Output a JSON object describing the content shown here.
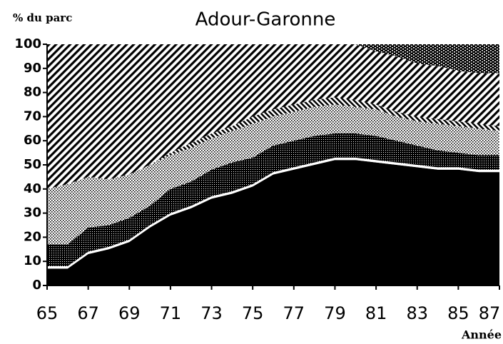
{
  "chart_data": {
    "type": "stacked-area",
    "title": "Adour-Garonne",
    "y_label": "% du parc",
    "x_label": "Année",
    "x": [
      65,
      66,
      67,
      68,
      69,
      70,
      71,
      72,
      73,
      74,
      75,
      76,
      77,
      78,
      79,
      80,
      81,
      82,
      83,
      84,
      85,
      86,
      87
    ],
    "xlim": [
      65,
      87
    ],
    "xticks": [
      65,
      67,
      69,
      71,
      73,
      75,
      77,
      79,
      81,
      83,
      85,
      87
    ],
    "ylim": [
      0,
      100
    ],
    "yticks": [
      0,
      10,
      20,
      30,
      40,
      50,
      60,
      70,
      80,
      90,
      100
    ],
    "series": [
      {
        "color": "#000000",
        "pattern": "solid",
        "values": [
          7,
          7,
          13,
          15,
          18,
          24,
          29,
          32,
          36,
          38,
          41,
          46,
          48,
          50,
          52,
          52,
          51,
          50,
          49,
          48,
          48,
          47,
          47
        ]
      },
      {
        "color": "#ffffff",
        "pattern": "solid",
        "values": [
          1,
          1,
          1,
          1,
          1,
          1,
          1,
          1,
          1,
          1,
          1,
          1,
          1,
          1,
          1,
          1,
          1,
          1,
          1,
          1,
          1,
          1,
          1
        ]
      },
      {
        "color": "#000000",
        "pattern": "crosshatch",
        "values": [
          9,
          9,
          10,
          9,
          9,
          8,
          10,
          10,
          11,
          12,
          11,
          11,
          11,
          11,
          10,
          10,
          10,
          9,
          8,
          7,
          6,
          6,
          6
        ]
      },
      {
        "color": "#000000",
        "pattern": "dots",
        "values": [
          23,
          25,
          21,
          19,
          18,
          17,
          14,
          14,
          13,
          13,
          14,
          12,
          12,
          12,
          12,
          11,
          11,
          10,
          10,
          11,
          11,
          11,
          10
        ]
      },
      {
        "color": "#000000",
        "pattern": "stripes",
        "values": [
          0,
          0,
          0,
          0,
          0,
          0,
          1,
          2,
          2,
          2,
          3,
          3,
          3,
          3,
          3,
          3,
          2,
          2,
          2,
          2,
          2,
          2,
          2
        ]
      },
      {
        "color": "#000000",
        "pattern": "hatch",
        "values": [
          60,
          58,
          55,
          56,
          54,
          50,
          45,
          41,
          37,
          34,
          30,
          27,
          25,
          23,
          22,
          23,
          22,
          23,
          22,
          22,
          21,
          21,
          22
        ]
      },
      {
        "color": "#000000",
        "pattern": "dense-dots",
        "values": [
          0,
          0,
          0,
          0,
          0,
          0,
          0,
          0,
          0,
          0,
          0,
          0,
          0,
          0,
          0,
          0,
          3,
          5,
          8,
          9,
          11,
          12,
          12
        ]
      }
    ]
  }
}
